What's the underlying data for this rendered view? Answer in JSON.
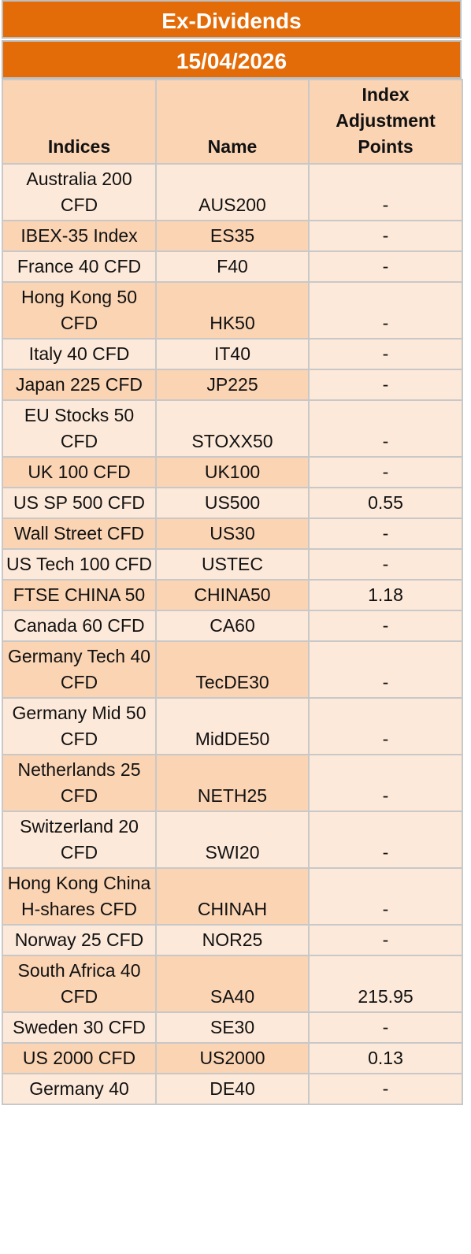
{
  "header": {
    "title": "Ex-Dividends",
    "date": "15/04/2026"
  },
  "table": {
    "columns": [
      "Indices",
      "Name",
      "Index Adjustment Points"
    ],
    "rows": [
      [
        "Australia 200 CFD",
        "AUS200",
        "-"
      ],
      [
        "IBEX-35 Index",
        "ES35",
        "-"
      ],
      [
        "France 40 CFD",
        "F40",
        "-"
      ],
      [
        "Hong Kong 50 CFD",
        "HK50",
        "-"
      ],
      [
        "Italy 40 CFD",
        "IT40",
        "-"
      ],
      [
        "Japan 225 CFD",
        "JP225",
        "-"
      ],
      [
        "EU Stocks 50 CFD",
        "STOXX50",
        "-"
      ],
      [
        "UK 100 CFD",
        "UK100",
        "-"
      ],
      [
        "US SP 500 CFD",
        "US500",
        "0.55"
      ],
      [
        "Wall Street CFD",
        "US30",
        "-"
      ],
      [
        "US Tech 100 CFD",
        "USTEC",
        "-"
      ],
      [
        "FTSE CHINA 50",
        "CHINA50",
        "1.18"
      ],
      [
        "Canada 60 CFD",
        "CA60",
        "-"
      ],
      [
        "Germany Tech 40 CFD",
        "TecDE30",
        "-"
      ],
      [
        "Germany Mid 50 CFD",
        "MidDE50",
        "-"
      ],
      [
        "Netherlands 25 CFD",
        "NETH25",
        "-"
      ],
      [
        "Switzerland 20 CFD",
        "SWI20",
        "-"
      ],
      [
        "Hong Kong China H-shares CFD",
        "CHINAH",
        "-"
      ],
      [
        "Norway 25 CFD",
        "NOR25",
        "-"
      ],
      [
        "South Africa 40 CFD",
        "SA40",
        "215.95"
      ],
      [
        "Sweden 30 CFD",
        "SE30",
        "-"
      ],
      [
        "US 2000 CFD",
        "US2000",
        "0.13"
      ],
      [
        "Germany 40",
        "DE40",
        "-"
      ]
    ]
  }
}
